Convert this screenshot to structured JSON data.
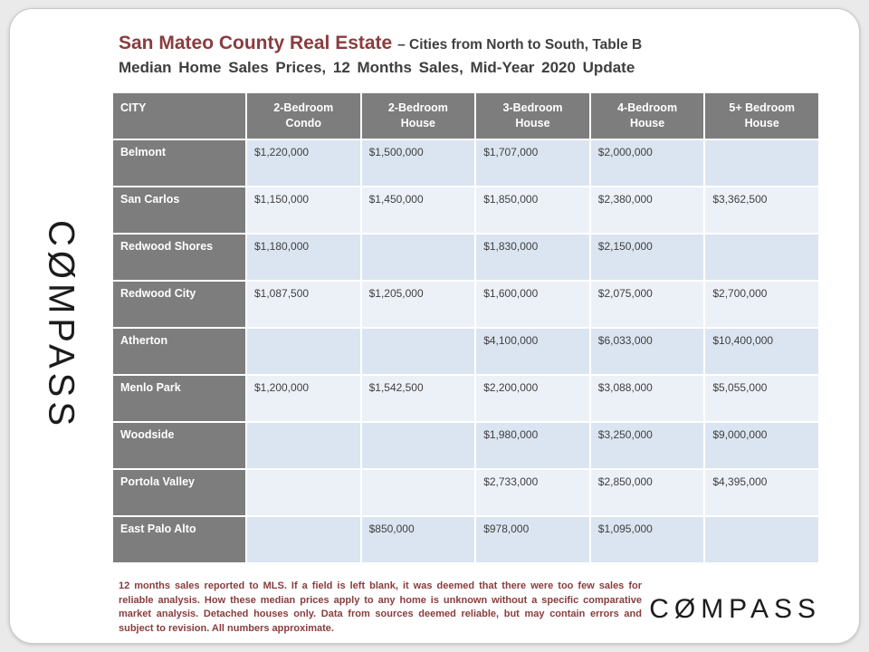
{
  "slide": {
    "title": {
      "main": "San Mateo County Real Estate",
      "suffix": "– Cities from North to South, Table B",
      "subtitle": "Median Home Sales Prices, 12 Months Sales, Mid-Year 2020 Update"
    },
    "footnote": "12 months sales reported to MLS. If a field is left blank, it was deemed that there were too few sales for reliable analysis. How these median prices apply to any home is unknown without a specific comparative market analysis. Detached houses only. Data from sources deemed reliable, but may contain errors and subject to revision. All numbers approximate.",
    "logo": {
      "wordmark": "CØMPASS"
    }
  },
  "colors": {
    "page_bg": "#eaeaea",
    "title_accent": "#8a3c3e",
    "heading_gray": "#3f3f3f",
    "header_bg": "#7d7d7d",
    "row_odd": "#dbe5f1",
    "row_even": "#ecf1f8",
    "cell_text": "#3f3f3f",
    "logo_black": "#1c1c1e"
  },
  "chart_data": {
    "type": "table",
    "title": "San Mateo County Real Estate – Median Home Sales Prices, 12 Months Sales, Mid-Year 2020 Update (Cities from North to South, Table B)",
    "columns": [
      "CITY",
      "2-Bedroom\nCondo",
      "2-Bedroom\nHouse",
      "3-Bedroom\nHouse",
      "4-Bedroom\nHouse",
      "5+ Bedroom\nHouse"
    ],
    "rows": [
      {
        "city": "Belmont",
        "prices": [
          "$1,220,000",
          "$1,500,000",
          "$1,707,000",
          "$2,000,000",
          ""
        ]
      },
      {
        "city": "San Carlos",
        "prices": [
          "$1,150,000",
          "$1,450,000",
          "$1,850,000",
          "$2,380,000",
          "$3,362,500"
        ]
      },
      {
        "city": "Redwood Shores",
        "prices": [
          "$1,180,000",
          "",
          "$1,830,000",
          "$2,150,000",
          ""
        ]
      },
      {
        "city": "Redwood City",
        "prices": [
          "$1,087,500",
          "$1,205,000",
          "$1,600,000",
          "$2,075,000",
          "$2,700,000"
        ]
      },
      {
        "city": "Atherton",
        "prices": [
          "",
          "",
          "$4,100,000",
          "$6,033,000",
          "$10,400,000"
        ]
      },
      {
        "city": "Menlo Park",
        "prices": [
          "$1,200,000",
          "$1,542,500",
          "$2,200,000",
          "$3,088,000",
          "$5,055,000"
        ]
      },
      {
        "city": "Woodside",
        "prices": [
          "",
          "",
          "$1,980,000",
          "$3,250,000",
          "$9,000,000"
        ]
      },
      {
        "city": "Portola Valley",
        "prices": [
          "",
          "",
          "$2,733,000",
          "$2,850,000",
          "$4,395,000"
        ]
      },
      {
        "city": "East Palo Alto",
        "prices": [
          "",
          "$850,000",
          "$978,000",
          "$1,095,000",
          ""
        ]
      }
    ]
  }
}
